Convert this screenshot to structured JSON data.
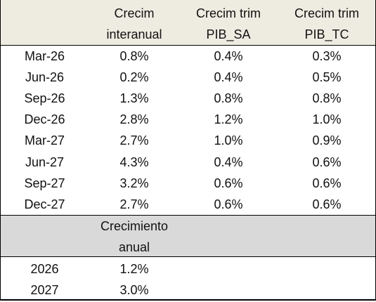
{
  "table": {
    "header": [
      {
        "lines": [
          "Crecim",
          "interanual"
        ]
      },
      {
        "lines": [
          "Crecim trim",
          "PIB_SA"
        ]
      },
      {
        "lines": [
          "Crecim trim",
          "PIB_TC"
        ]
      }
    ],
    "rows": [
      [
        "Mar-26",
        "0.8%",
        "0.4%",
        "0.3%"
      ],
      [
        "Jun-26",
        "0.2%",
        "0.4%",
        "0.5%"
      ],
      [
        "Sep-26",
        "1.3%",
        "0.8%",
        "0.8%"
      ],
      [
        "Dec-26",
        "2.8%",
        "1.2%",
        "1.0%"
      ],
      [
        "Mar-27",
        "2.7%",
        "1.0%",
        "0.9%"
      ],
      [
        "Jun-27",
        "4.3%",
        "0.4%",
        "0.6%"
      ],
      [
        "Sep-27",
        "3.2%",
        "0.6%",
        "0.6%"
      ],
      [
        "Dec-27",
        "2.7%",
        "0.6%",
        "0.6%"
      ]
    ],
    "section": {
      "lines": [
        "Crecimiento",
        "anual"
      ]
    },
    "annual_rows": [
      [
        "2026",
        "1.2%"
      ],
      [
        "2027",
        "3.0%"
      ]
    ]
  }
}
